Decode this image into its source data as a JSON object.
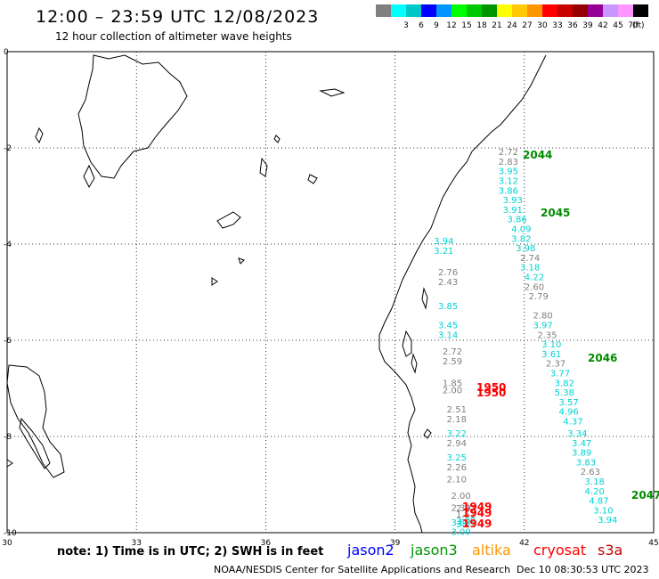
{
  "header": {
    "title": "12:00 – 23:59 UTC 12/08/2023",
    "subtitle": "12 hour collection of altimeter wave heights"
  },
  "legend": {
    "unit": "(ft)",
    "bins": [
      {
        "label": "",
        "color": "#808080"
      },
      {
        "label": "3",
        "color": "#00ffff"
      },
      {
        "label": "6",
        "color": "#00c8c8"
      },
      {
        "label": "9",
        "color": "#0000ff"
      },
      {
        "label": "12",
        "color": "#0096ff"
      },
      {
        "label": "15",
        "color": "#00ff00"
      },
      {
        "label": "18",
        "color": "#00c800"
      },
      {
        "label": "21",
        "color": "#009600"
      },
      {
        "label": "24",
        "color": "#ffff00"
      },
      {
        "label": "27",
        "color": "#ffc800"
      },
      {
        "label": "30",
        "color": "#ff9600"
      },
      {
        "label": "33",
        "color": "#ff0000"
      },
      {
        "label": "36",
        "color": "#c80000"
      },
      {
        "label": "39",
        "color": "#960000"
      },
      {
        "label": "42",
        "color": "#960096"
      },
      {
        "label": "45",
        "color": "#c896ff"
      },
      {
        "label": "70",
        "color": "#ff96ff"
      },
      {
        "label": "",
        "color": "#000000"
      }
    ]
  },
  "map": {
    "lon_range": [
      30,
      45
    ],
    "lat_range": [
      -10,
      0
    ],
    "lon_ticks": [
      "30",
      "33",
      "36",
      "39",
      "42",
      "45"
    ],
    "lat_ticks": [
      "0",
      "-2",
      "-4",
      "-6",
      "-8",
      "-10"
    ],
    "grid": "dotted"
  },
  "tracks": [
    {
      "lon": 41.4,
      "lat": -2.15,
      "v": "2.72",
      "c": "#808080"
    },
    {
      "lon": 41.4,
      "lat": -2.35,
      "v": "2.83",
      "c": "#808080"
    },
    {
      "lon": 41.4,
      "lat": -2.55,
      "v": "3.95",
      "c": "#00d2d2"
    },
    {
      "lon": 41.4,
      "lat": -2.75,
      "v": "3.12",
      "c": "#00d2d2"
    },
    {
      "lon": 41.4,
      "lat": -2.95,
      "v": "3.86",
      "c": "#00d2d2"
    },
    {
      "lon": 41.5,
      "lat": -3.15,
      "v": "3.93",
      "c": "#00d2d2"
    },
    {
      "lon": 41.5,
      "lat": -3.35,
      "v": "3.91",
      "c": "#00d2d2"
    },
    {
      "lon": 41.6,
      "lat": -3.55,
      "v": "3.86",
      "c": "#00d2d2"
    },
    {
      "lon": 41.7,
      "lat": -3.75,
      "v": "4.09",
      "c": "#00d2d2"
    },
    {
      "lon": 41.7,
      "lat": -3.95,
      "v": "3.82",
      "c": "#00d2d2"
    },
    {
      "lon": 41.8,
      "lat": -4.15,
      "v": "3.98",
      "c": "#00d2d2"
    },
    {
      "lon": 41.9,
      "lat": -4.35,
      "v": "2.74",
      "c": "#808080"
    },
    {
      "lon": 41.9,
      "lat": -4.55,
      "v": "3.18",
      "c": "#00d2d2"
    },
    {
      "lon": 42.0,
      "lat": -4.75,
      "v": "4.22",
      "c": "#00d2d2"
    },
    {
      "lon": 42.0,
      "lat": -4.95,
      "v": "2.60",
      "c": "#808080"
    },
    {
      "lon": 42.1,
      "lat": -5.15,
      "v": "2.79",
      "c": "#808080"
    },
    {
      "lon": 42.2,
      "lat": -5.55,
      "v": "2.80",
      "c": "#808080"
    },
    {
      "lon": 42.2,
      "lat": -5.75,
      "v": "3.97",
      "c": "#00d2d2"
    },
    {
      "lon": 42.3,
      "lat": -5.95,
      "v": "2.35",
      "c": "#808080"
    },
    {
      "lon": 42.4,
      "lat": -6.15,
      "v": "3.10",
      "c": "#00d2d2"
    },
    {
      "lon": 42.4,
      "lat": -6.35,
      "v": "3.61",
      "c": "#00d2d2"
    },
    {
      "lon": 42.5,
      "lat": -6.55,
      "v": "2.37",
      "c": "#808080"
    },
    {
      "lon": 42.6,
      "lat": -6.75,
      "v": "3.77",
      "c": "#00d2d2"
    },
    {
      "lon": 42.7,
      "lat": -6.95,
      "v": "3.82",
      "c": "#00d2d2"
    },
    {
      "lon": 42.7,
      "lat": -7.15,
      "v": "5.38",
      "c": "#00d2d2"
    },
    {
      "lon": 42.8,
      "lat": -7.35,
      "v": "3.57",
      "c": "#00d2d2"
    },
    {
      "lon": 42.8,
      "lat": -7.55,
      "v": "4.96",
      "c": "#00d2d2"
    },
    {
      "lon": 42.9,
      "lat": -7.75,
      "v": "4.37",
      "c": "#00d2d2"
    },
    {
      "lon": 43.0,
      "lat": -8.0,
      "v": "3.34",
      "c": "#00d2d2"
    },
    {
      "lon": 43.1,
      "lat": -8.2,
      "v": "3.47",
      "c": "#00d2d2"
    },
    {
      "lon": 43.1,
      "lat": -8.4,
      "v": "3.89",
      "c": "#00d2d2"
    },
    {
      "lon": 43.2,
      "lat": -8.6,
      "v": "3.83",
      "c": "#00d2d2"
    },
    {
      "lon": 43.3,
      "lat": -8.8,
      "v": "2.63",
      "c": "#808080"
    },
    {
      "lon": 43.4,
      "lat": -9.0,
      "v": "3.18",
      "c": "#00d2d2"
    },
    {
      "lon": 43.4,
      "lat": -9.2,
      "v": "4.20",
      "c": "#00d2d2"
    },
    {
      "lon": 43.5,
      "lat": -9.4,
      "v": "4.87",
      "c": "#00d2d2"
    },
    {
      "lon": 43.6,
      "lat": -9.6,
      "v": "3.10",
      "c": "#00d2d2"
    },
    {
      "lon": 43.7,
      "lat": -9.8,
      "v": "3.94",
      "c": "#00d2d2"
    },
    {
      "lon": 39.9,
      "lat": -4.0,
      "v": "3.94",
      "c": "#00d2d2"
    },
    {
      "lon": 39.9,
      "lat": -4.2,
      "v": "3.21",
      "c": "#00d2d2"
    },
    {
      "lon": 40.0,
      "lat": -4.65,
      "v": "2.76",
      "c": "#808080"
    },
    {
      "lon": 40.0,
      "lat": -4.85,
      "v": "2.43",
      "c": "#808080"
    },
    {
      "lon": 40.0,
      "lat": -5.35,
      "v": "3.85",
      "c": "#00d2d2"
    },
    {
      "lon": 40.0,
      "lat": -5.75,
      "v": "3.45",
      "c": "#00d2d2"
    },
    {
      "lon": 40.0,
      "lat": -5.95,
      "v": "3.14",
      "c": "#00d2d2"
    },
    {
      "lon": 40.1,
      "lat": -6.3,
      "v": "2.72",
      "c": "#808080"
    },
    {
      "lon": 40.1,
      "lat": -6.5,
      "v": "2.59",
      "c": "#808080"
    },
    {
      "lon": 40.1,
      "lat": -6.95,
      "v": "1.85",
      "c": "#808080"
    },
    {
      "lon": 40.1,
      "lat": -7.1,
      "v": "2.00",
      "c": "#808080"
    },
    {
      "lon": 40.2,
      "lat": -7.5,
      "v": "2.51",
      "c": "#808080"
    },
    {
      "lon": 40.2,
      "lat": -7.7,
      "v": "2.18",
      "c": "#808080"
    },
    {
      "lon": 40.2,
      "lat": -8.0,
      "v": "3.22",
      "c": "#00d2d2"
    },
    {
      "lon": 40.2,
      "lat": -8.2,
      "v": "2.94",
      "c": "#808080"
    },
    {
      "lon": 40.2,
      "lat": -8.5,
      "v": "3.25",
      "c": "#00d2d2"
    },
    {
      "lon": 40.2,
      "lat": -8.7,
      "v": "2.26",
      "c": "#808080"
    },
    {
      "lon": 40.2,
      "lat": -8.95,
      "v": "2.10",
      "c": "#808080"
    },
    {
      "lon": 40.3,
      "lat": -9.3,
      "v": "2.00",
      "c": "#808080"
    },
    {
      "lon": 40.3,
      "lat": -9.55,
      "v": "2.39",
      "c": "#808080"
    },
    {
      "lon": 40.3,
      "lat": -9.85,
      "v": "3.63",
      "c": "#00d2d2"
    },
    {
      "lon": 40.3,
      "lat": -10.05,
      "v": "3.09",
      "c": "#00d2d2"
    }
  ],
  "lower_values": [
    {
      "x": 512,
      "y": 574,
      "v": "2.87",
      "c": "#808080"
    },
    {
      "x": 512,
      "y": 581,
      "v": "1.51",
      "c": "#808080"
    },
    {
      "x": 512,
      "y": 588,
      "v": "3.08",
      "c": "#00d2d2"
    },
    {
      "x": 512,
      "y": 592,
      "v": "3.11",
      "c": "#00d2d2"
    }
  ],
  "time_labels": [
    {
      "x": 587,
      "y": 178,
      "v": "2044",
      "c": "#008c00"
    },
    {
      "x": 607,
      "y": 243,
      "v": "2045",
      "c": "#008c00"
    },
    {
      "x": 660,
      "y": 406,
      "v": "2046",
      "c": "#008c00"
    },
    {
      "x": 709,
      "y": 560,
      "v": "2047",
      "c": "#008c00"
    },
    {
      "x": 535,
      "y": 439,
      "v": "1950",
      "c": "#ff0000"
    },
    {
      "x": 535,
      "y": 445,
      "v": "1950",
      "c": "#ff0000"
    },
    {
      "x": 519,
      "y": 573,
      "v": "1949",
      "c": "#ff0000"
    },
    {
      "x": 519,
      "y": 580,
      "v": "1949",
      "c": "#ff0000"
    },
    {
      "x": 519,
      "y": 592,
      "v": "1949",
      "c": "#ff0000"
    }
  ],
  "footer": {
    "note": "note: 1) Time is in UTC; 2) SWH is in feet",
    "satellites": [
      {
        "name": "jason2",
        "color": "#0000ff"
      },
      {
        "name": "jason3",
        "color": "#009600"
      },
      {
        "name": "altika",
        "color": "#ff9600"
      },
      {
        "name": "cryosat",
        "color": "#ff0000"
      },
      {
        "name": "s3a",
        "color": "#c80000"
      }
    ],
    "credit": "NOAA/NESDIS Center for Satellite Applications and Research",
    "timestamp": "Dec 10 08:30:53 UTC 2023"
  }
}
